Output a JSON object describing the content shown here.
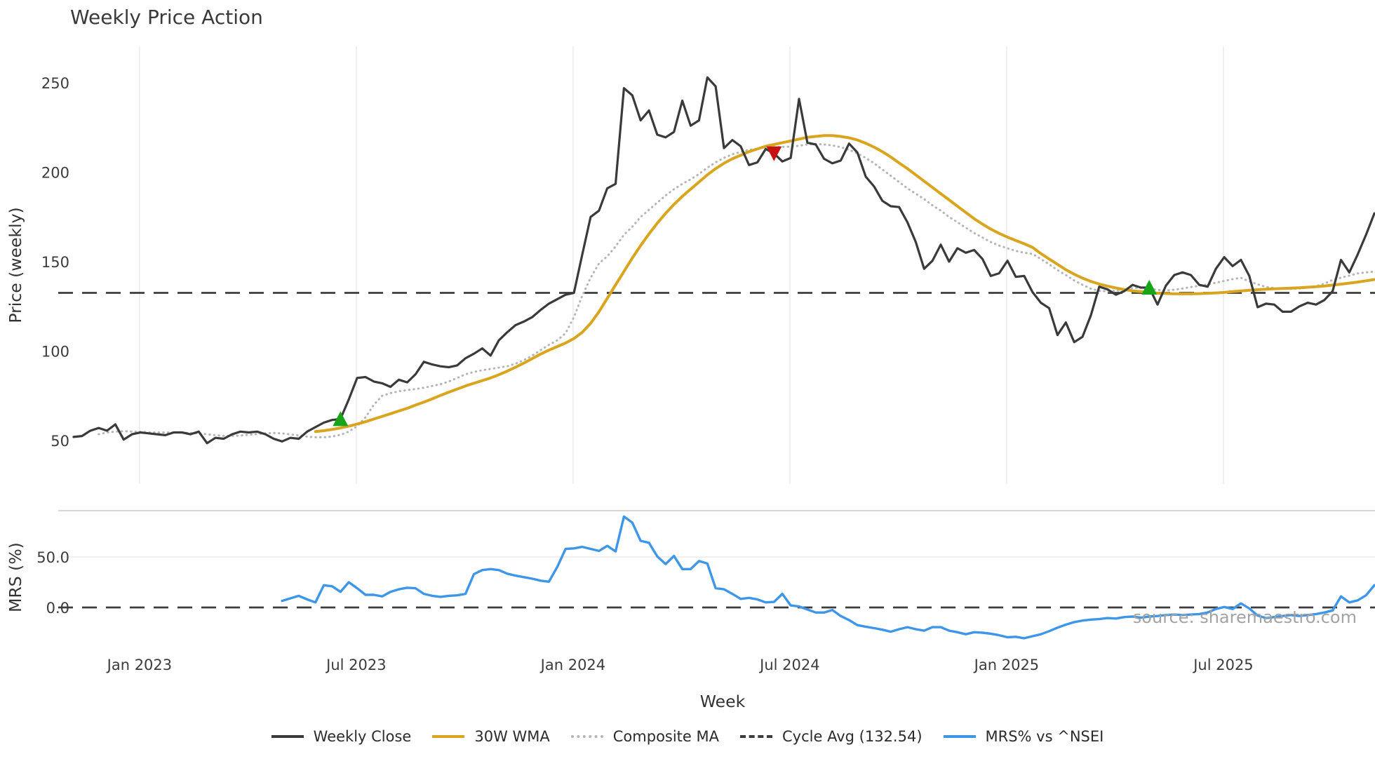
{
  "title": "Weekly Price Action",
  "source_note": "source: sharemaestro.com",
  "colors": {
    "weekly_close": "#3a3a3a",
    "wma": "#d9a41e",
    "composite": "#b5b5b5",
    "cycle_avg": "#3d3d3d",
    "mrs": "#3e96e8",
    "buy_marker": "#18a418",
    "sell_marker": "#c61212",
    "grid": "#ececec",
    "spine": "#c9c9c9",
    "tick_text": "#3c3c3c"
  },
  "legend": {
    "items": [
      {
        "label": "Weekly Close",
        "style": "solid",
        "color_key": "weekly_close"
      },
      {
        "label": "30W WMA",
        "style": "solid",
        "color_key": "wma"
      },
      {
        "label": "Composite MA",
        "style": "dotted",
        "color_key": "composite"
      },
      {
        "label": "Cycle Avg (132.54)",
        "style": "dashed",
        "color_key": "cycle_avg"
      },
      {
        "label": "MRS% vs ^NSEI",
        "style": "solid",
        "color_key": "mrs"
      }
    ]
  },
  "x_axis": {
    "label": "Week",
    "ticks": [
      {
        "label": "Jan 2023",
        "week": 7.9
      },
      {
        "label": "Jul 2023",
        "week": 33.9
      },
      {
        "label": "Jan 2024",
        "week": 59.9
      },
      {
        "label": "Jul 2024",
        "week": 85.9
      },
      {
        "label": "Jan 2025",
        "week": 111.9
      },
      {
        "label": "Jul 2025",
        "week": 137.9
      }
    ]
  },
  "chart_data": [
    {
      "type": "line",
      "panel": "price",
      "title": "Weekly Price Action",
      "xlabel": "Week",
      "ylabel": "Price (weekly)",
      "y_ticks": [
        50,
        100,
        150,
        200,
        250
      ],
      "ylim": [
        41,
        270
      ],
      "grid": "vertical-only",
      "cycle_avg": 132.54,
      "series": [
        {
          "name": "Weekly Close",
          "start_week": 0,
          "values": [
            52,
            52.5,
            55.5,
            57,
            55.5,
            59,
            50.5,
            53.5,
            54.5,
            54,
            53.5,
            53,
            54.5,
            54.5,
            53.5,
            55,
            48.5,
            51.5,
            51,
            53.5,
            55,
            54.5,
            55,
            53.5,
            51,
            49.5,
            51.5,
            51,
            55,
            57.5,
            60,
            61.5,
            62,
            73,
            85,
            85.5,
            83,
            82,
            80,
            84,
            82.5,
            87,
            94,
            92.5,
            91.5,
            91,
            92,
            96,
            98.5,
            101.5,
            97.5,
            106,
            110.5,
            114.5,
            116.5,
            119,
            123,
            126.5,
            129,
            131.5,
            132.5,
            154,
            175,
            178.5,
            191,
            193.5,
            247,
            243,
            229,
            234.5,
            221,
            219.5,
            222.5,
            240,
            226,
            229,
            253,
            248,
            213.5,
            218,
            214.5,
            204,
            205.5,
            213,
            210.5,
            206,
            208,
            241,
            216.5,
            215.5,
            207.5,
            205,
            206.5,
            216,
            211,
            197.5,
            192,
            184,
            181,
            180.5,
            172,
            161,
            146,
            150.5,
            159.5,
            150,
            157.5,
            155,
            156.5,
            151.5,
            142,
            143.5,
            150.5,
            141.5,
            142,
            133,
            127,
            124,
            109,
            116,
            105,
            108,
            120,
            136,
            134.5,
            131.5,
            133.5,
            137,
            135.5,
            135.5,
            126,
            136.5,
            142.5,
            144,
            142.5,
            137,
            136,
            146,
            152.5,
            147.5,
            151,
            142,
            124.5,
            126.5,
            126,
            122,
            122,
            125,
            127,
            126,
            128.5,
            133.5,
            151,
            144,
            154,
            165,
            177
          ]
        },
        {
          "name": "30W WMA",
          "start_week": 29,
          "values": [
            55,
            55.5,
            56.2,
            57,
            58,
            59.2,
            60.5,
            62,
            63.5,
            65,
            66.5,
            68,
            69.8,
            71.5,
            73.3,
            75.2,
            77,
            78.8,
            80.5,
            82,
            83.5,
            85,
            86.8,
            88.8,
            91,
            93.3,
            95.8,
            98.3,
            100.5,
            102.5,
            104.5,
            107,
            110.5,
            115.5,
            122,
            129.5,
            137,
            144.5,
            152,
            159,
            165.5,
            171.5,
            177,
            182,
            186.5,
            190.5,
            194.5,
            198.5,
            202,
            205,
            207.5,
            209.5,
            211.5,
            213,
            214.5,
            215.5,
            216.5,
            217.5,
            218.5,
            219.5,
            220,
            220.5,
            220.5,
            220,
            219.2,
            218,
            216.2,
            214,
            211.5,
            208.5,
            205.2,
            202,
            198.5,
            195,
            191.5,
            188,
            184.5,
            181,
            177.5,
            174,
            171,
            168.2,
            165.8,
            163.7,
            161.8,
            160,
            158,
            154.5,
            151.5,
            148.5,
            145.5,
            143,
            140.8,
            139,
            137.5,
            136.3,
            135.3,
            134.4,
            133.7,
            133.2,
            132.8,
            132.4,
            132.2,
            132,
            132,
            132,
            132.1,
            132.3,
            132.5,
            132.8,
            133.2,
            133.6,
            134,
            134.3,
            134.6,
            134.8,
            135,
            135.2,
            135.4,
            135.7,
            136,
            136.4,
            136.9,
            137.4,
            138,
            138.6,
            139.3,
            140
          ]
        },
        {
          "name": "Composite MA",
          "start_week": 3,
          "values": [
            53.5,
            54.5,
            55,
            55.2,
            55,
            54.8,
            54.6,
            54.5,
            54.5,
            54.5,
            54.4,
            54.2,
            54,
            53.5,
            53,
            52.6,
            52.6,
            52.8,
            53.2,
            53.6,
            54,
            54.2,
            54,
            53.4,
            52.8,
            52.2,
            51.8,
            51.8,
            52.2,
            53.2,
            55,
            58,
            63,
            70,
            75,
            76.5,
            77.5,
            78.2,
            78.8,
            79.5,
            80.5,
            81.5,
            83,
            85,
            87,
            88.3,
            89.3,
            90,
            90.8,
            91.5,
            93,
            95,
            97.5,
            100.5,
            103.5,
            106,
            110,
            119,
            131,
            141,
            149,
            153,
            158.5,
            165,
            169.5,
            175,
            179,
            183,
            187,
            190.5,
            193.5,
            196,
            199,
            202.5,
            205.5,
            208,
            210,
            211.3,
            212.5,
            213.2,
            213.8,
            214,
            214.2,
            214.3,
            214.8,
            215.5,
            215.8,
            215.5,
            215,
            214,
            212.5,
            210.5,
            208,
            205,
            201.5,
            198,
            194.5,
            191,
            188,
            185,
            181.5,
            178.5,
            175,
            172,
            169,
            166,
            163.5,
            161,
            159,
            157.5,
            156,
            155,
            154.3,
            151.5,
            148.5,
            145.3,
            142.5,
            139.5,
            137,
            134.9,
            133.7,
            133.4,
            133.7,
            134.5,
            135.2,
            135.5,
            135,
            134.2,
            133.9,
            134.3,
            135,
            135.8,
            136.5,
            137.2,
            138.2,
            139.2,
            140.2,
            141,
            139,
            137.3,
            135.9,
            135.2,
            134.8,
            134.7,
            135,
            135.5,
            136.3,
            137.7,
            139.8,
            141,
            142.2,
            143.4,
            144,
            144.5
          ]
        }
      ],
      "markers": {
        "buy": [
          {
            "week": 32,
            "value": 62
          },
          {
            "week": 129,
            "value": 135.5
          }
        ],
        "sell": [
          {
            "week": 84,
            "value": 210.5
          }
        ]
      }
    },
    {
      "type": "line",
      "panel": "mrs",
      "ylabel": "MRS (%)",
      "y_tick_labels": [
        "0.0",
        "50.0"
      ],
      "y_tick_values": [
        0,
        50
      ],
      "ylim": [
        -35,
        96
      ],
      "zero_line": 0,
      "grid": "horizontal-only",
      "series": [
        {
          "name": "MRS% vs ^NSEI",
          "start_week": 25,
          "values": [
            6.5,
            9,
            11.5,
            8,
            5,
            22,
            21,
            15.5,
            25,
            19,
            12.5,
            12.5,
            11,
            15.5,
            18,
            19.5,
            19,
            13.5,
            11.5,
            10.5,
            11.5,
            12,
            13.5,
            33,
            37,
            38,
            37,
            33.5,
            31.5,
            30,
            28.5,
            26.5,
            25.5,
            40,
            58,
            58.5,
            60,
            58,
            56,
            61,
            55.5,
            90,
            84,
            66,
            64,
            50.5,
            43,
            51,
            38,
            38,
            46,
            43.5,
            19,
            18,
            13.5,
            8.5,
            9.5,
            8,
            5,
            5.5,
            13.5,
            2,
            1,
            -2,
            -5,
            -5,
            -2.5,
            -8.5,
            -12.5,
            -17.5,
            -19,
            -20.5,
            -22,
            -24,
            -21.5,
            -19.5,
            -21.5,
            -23,
            -19.5,
            -19.5,
            -23,
            -24.5,
            -26.5,
            -24.5,
            -25,
            -26,
            -27.5,
            -29.5,
            -29,
            -30.5,
            -28.5,
            -26.5,
            -23.5,
            -20,
            -17,
            -14.5,
            -13,
            -12,
            -11.5,
            -10.5,
            -11,
            -9.5,
            -9,
            -10,
            -9,
            -8.5,
            -7.5,
            -7,
            -7.5,
            -7,
            -6.5,
            -5,
            -1.5,
            0.5,
            -1.5,
            4,
            -1,
            -8,
            -10.5,
            -9.5,
            -8.5,
            -7.5,
            -8.5,
            -7.5,
            -6.5,
            -5,
            -3,
            11,
            5,
            7,
            12,
            22
          ]
        }
      ]
    }
  ]
}
